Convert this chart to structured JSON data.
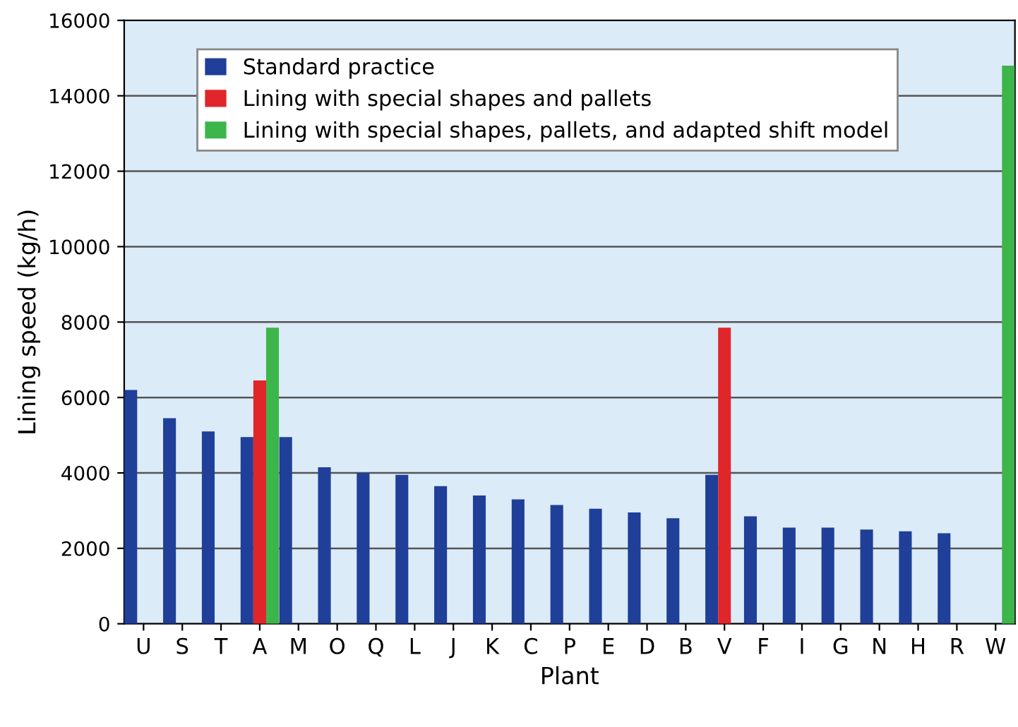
{
  "chart_data": {
    "type": "bar",
    "xlabel": "Plant",
    "ylabel": "Lining speed (kg/h)",
    "categories": [
      "U",
      "S",
      "T",
      "A",
      "M",
      "O",
      "Q",
      "L",
      "J",
      "K",
      "C",
      "P",
      "E",
      "D",
      "B",
      "V",
      "F",
      "I",
      "G",
      "N",
      "H",
      "R",
      "W"
    ],
    "series": [
      {
        "name": "Standard practice",
        "color": "#1f3f98",
        "values": [
          6200,
          5450,
          5100,
          4950,
          4950,
          4150,
          4000,
          3950,
          3650,
          3400,
          3300,
          3150,
          3050,
          2950,
          2800,
          3950,
          2850,
          2550,
          2550,
          2500,
          2450,
          2400,
          null
        ]
      },
      {
        "name": "Lining with special shapes and pallets",
        "color": "#e0262a",
        "values": [
          null,
          null,
          null,
          6450,
          null,
          null,
          null,
          null,
          null,
          null,
          null,
          null,
          null,
          null,
          null,
          7850,
          null,
          null,
          null,
          null,
          null,
          null,
          null
        ]
      },
      {
        "name": "Lining with special shapes, pallets, and adapted shift model",
        "color": "#3cb54a",
        "values": [
          null,
          null,
          null,
          7850,
          null,
          null,
          null,
          null,
          null,
          null,
          null,
          null,
          null,
          null,
          null,
          null,
          null,
          null,
          null,
          null,
          null,
          null,
          14800
        ]
      }
    ],
    "ylim": [
      0,
      16000
    ],
    "yticks": [
      0,
      2000,
      4000,
      6000,
      8000,
      10000,
      12000,
      14000,
      16000
    ],
    "grid": "y",
    "legend": "top left"
  }
}
